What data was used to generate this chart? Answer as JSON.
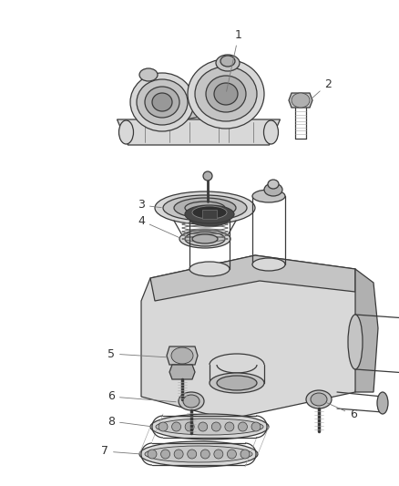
{
  "bg_color": "#ffffff",
  "lc": "#3a3a3a",
  "lc_mid": "#6a6a6a",
  "lc_light": "#aaaaaa",
  "lc_fill": "#d8d8d8",
  "lc_fill2": "#c4c4c4",
  "lc_fill3": "#b0b0b0",
  "lc_dark": "#1a1a1a",
  "lc_darkfill": "#484848",
  "figsize": [
    4.38,
    5.33
  ],
  "dpi": 100,
  "label_fs": 9,
  "label_color": "#333333",
  "annot_lw": 0.6,
  "annot_color": "#777777"
}
